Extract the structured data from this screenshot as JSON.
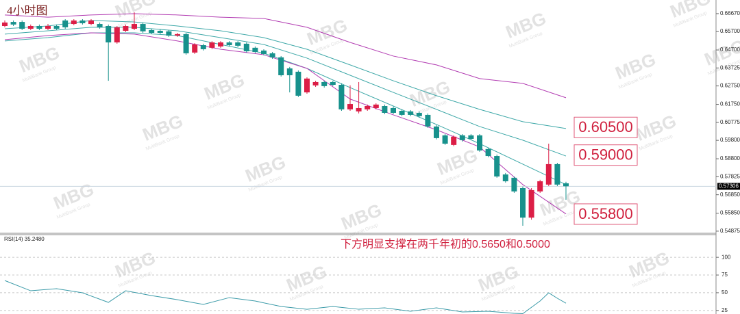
{
  "chart_data": [
    {
      "type": "candlestick",
      "title": "4小时图",
      "open": [
        0.66,
        0.6622,
        0.6622,
        0.6585,
        0.66,
        0.6585,
        0.66,
        0.663,
        0.6611,
        0.663,
        0.6611,
        0.6611,
        0.66,
        0.6511,
        0.6574,
        0.6585,
        0.6611,
        0.6578,
        0.6574,
        0.6571,
        0.6548,
        0.6556,
        0.6456,
        0.6496,
        0.6482,
        0.6489,
        0.6511,
        0.6511,
        0.6504,
        0.6482,
        0.6467,
        0.6452,
        0.643,
        0.637,
        0.6352,
        0.624,
        0.6278,
        0.6296,
        0.6296,
        0.6281,
        0.6148,
        0.6137,
        0.6148,
        0.6155,
        0.6166,
        0.6155,
        0.614,
        0.6137,
        0.6129,
        0.6118,
        0.6055,
        0.6007,
        0.5955,
        0.6007,
        0.6007,
        0.6007,
        0.5933,
        0.5895,
        0.5795,
        0.5777,
        0.5721,
        0.5561,
        0.5703,
        0.574,
        0.5851,
        0.5747
      ],
      "high": [
        0.663,
        0.663,
        0.663,
        0.6608,
        0.6608,
        0.6611,
        0.6608,
        0.6637,
        0.6637,
        0.6637,
        0.6637,
        0.6619,
        0.6608,
        0.66,
        0.6608,
        0.6674,
        0.6619,
        0.6585,
        0.6582,
        0.6578,
        0.6563,
        0.6563,
        0.6507,
        0.6504,
        0.6518,
        0.6518,
        0.6518,
        0.6518,
        0.6511,
        0.6489,
        0.6474,
        0.6459,
        0.6437,
        0.6378,
        0.6359,
        0.6322,
        0.6303,
        0.6303,
        0.6303,
        0.6289,
        0.6278,
        0.6296,
        0.6174,
        0.6181,
        0.6174,
        0.6163,
        0.6148,
        0.6144,
        0.6137,
        0.6126,
        0.6063,
        0.6014,
        0.6007,
        0.6014,
        0.6014,
        0.6014,
        0.594,
        0.5903,
        0.5803,
        0.5784,
        0.5729,
        0.5721,
        0.5766,
        0.5962,
        0.5858,
        0.5755
      ],
      "low": [
        0.6593,
        0.66,
        0.6578,
        0.6578,
        0.6578,
        0.6578,
        0.6578,
        0.6585,
        0.6604,
        0.6608,
        0.6604,
        0.6585,
        0.6303,
        0.6504,
        0.6567,
        0.6578,
        0.6563,
        0.6556,
        0.6556,
        0.6541,
        0.6541,
        0.6444,
        0.6448,
        0.6467,
        0.6474,
        0.6482,
        0.6489,
        0.6485,
        0.6456,
        0.6452,
        0.6441,
        0.6422,
        0.6326,
        0.624,
        0.6215,
        0.6233,
        0.627,
        0.6266,
        0.6274,
        0.614,
        0.614,
        0.6126,
        0.614,
        0.6148,
        0.6122,
        0.6122,
        0.6111,
        0.6111,
        0.6103,
        0.6048,
        0.5985,
        0.5955,
        0.5948,
        0.5973,
        0.5981,
        0.5918,
        0.5888,
        0.5777,
        0.5751,
        0.5695,
        0.5517,
        0.555,
        0.5695,
        0.5732,
        0.5732,
        0.5658
      ],
      "close": [
        0.6619,
        0.6608,
        0.6585,
        0.66,
        0.6585,
        0.66,
        0.6585,
        0.6593,
        0.663,
        0.6615,
        0.663,
        0.6593,
        0.6511,
        0.6593,
        0.66,
        0.6611,
        0.6571,
        0.6563,
        0.6563,
        0.6548,
        0.6556,
        0.6452,
        0.65,
        0.6474,
        0.6511,
        0.6511,
        0.6496,
        0.6493,
        0.6463,
        0.6459,
        0.6448,
        0.643,
        0.6333,
        0.6333,
        0.6222,
        0.6315,
        0.6296,
        0.6274,
        0.6281,
        0.6148,
        0.6177,
        0.6155,
        0.6166,
        0.6174,
        0.6129,
        0.6129,
        0.6118,
        0.6118,
        0.6111,
        0.6055,
        0.5992,
        0.5962,
        0.6,
        0.5981,
        0.5988,
        0.5925,
        0.5895,
        0.5784,
        0.5758,
        0.5703,
        0.5561,
        0.571,
        0.5758,
        0.5851,
        0.574,
        0.5731
      ],
      "up_color": "#dc1e46",
      "down_color": "#17918c",
      "bands": [
        {
          "color": "#b23cb2",
          "x": [
            0,
            5,
            10,
            15,
            20,
            25,
            30,
            35,
            40,
            45,
            50,
            55,
            60,
            65
          ],
          "values": [
            0.666,
            0.6648,
            0.666,
            0.6667,
            0.666,
            0.6648,
            0.6641,
            0.6593,
            0.6511,
            0.6437,
            0.6389,
            0.6315,
            0.6289,
            0.6211
          ]
        },
        {
          "color": "#3ea8a8",
          "x": [
            0,
            5,
            10,
            15,
            20,
            25,
            30,
            35,
            40,
            45,
            50,
            55,
            60,
            65
          ],
          "values": [
            0.6585,
            0.66,
            0.663,
            0.6622,
            0.66,
            0.6574,
            0.6537,
            0.6474,
            0.6389,
            0.6303,
            0.6222,
            0.6148,
            0.6081,
            0.6044
          ]
        },
        {
          "color": "#3ea8a8",
          "x": [
            0,
            5,
            10,
            15,
            20,
            25,
            30,
            35,
            40,
            45,
            50,
            55,
            60,
            65
          ],
          "values": [
            0.6556,
            0.6574,
            0.6593,
            0.6593,
            0.6574,
            0.6537,
            0.65,
            0.6426,
            0.6333,
            0.624,
            0.6148,
            0.6055,
            0.5981,
            0.5895
          ]
        },
        {
          "color": "#3ea8a8",
          "x": [
            0,
            5,
            10,
            15,
            20,
            25,
            30,
            35,
            40,
            45,
            50,
            55,
            60,
            65
          ],
          "values": [
            0.6519,
            0.6537,
            0.6563,
            0.6563,
            0.6548,
            0.65,
            0.6452,
            0.637,
            0.6266,
            0.6166,
            0.6066,
            0.5962,
            0.5851,
            0.574
          ]
        },
        {
          "color": "#b23cb2",
          "x": [
            0,
            5,
            10,
            15,
            20,
            25,
            30,
            35,
            40,
            45,
            50,
            55,
            60,
            65
          ],
          "values": [
            0.6526,
            0.6548,
            0.6563,
            0.6556,
            0.6519,
            0.6474,
            0.6444,
            0.637,
            0.6204,
            0.6118,
            0.6037,
            0.5944,
            0.574,
            0.5581
          ]
        }
      ],
      "ylim": [
        0.5476,
        0.6741
      ],
      "yticks": [
        {
          "value": 0.6667,
          "label": "0.66670"
        },
        {
          "value": 0.657,
          "label": "0.65700"
        },
        {
          "value": 0.647,
          "label": "0.64700"
        },
        {
          "value": 0.63725,
          "label": "0.63725"
        },
        {
          "value": 0.6275,
          "label": "0.62750"
        },
        {
          "value": 0.6175,
          "label": "0.61750"
        },
        {
          "value": 0.60775,
          "label": "0.60775"
        },
        {
          "value": 0.598,
          "label": "0.59800"
        },
        {
          "value": 0.588,
          "label": "0.58800"
        },
        {
          "value": 0.57825,
          "label": "0.57825"
        },
        {
          "value": 0.5685,
          "label": "0.56850"
        },
        {
          "value": 0.5585,
          "label": "0.55850"
        },
        {
          "value": 0.54875,
          "label": "0.54875"
        }
      ],
      "last_price": 0.57306,
      "levels": [
        {
          "value": 0.605,
          "label": "0.60500"
        },
        {
          "value": 0.59,
          "label": "0.59000"
        },
        {
          "value": 0.558,
          "label": "0.55800"
        }
      ],
      "note": "下方明显支撑在两千年初的0.5650和0.5000"
    },
    {
      "type": "line",
      "title": "RSI(14) 35.2480",
      "color": "#3a9aa8",
      "x": [
        0,
        3,
        6,
        9,
        12,
        14,
        17,
        20,
        23,
        26,
        29,
        32,
        35,
        38,
        41,
        44,
        47,
        50,
        53,
        56,
        59,
        60,
        62,
        63,
        64,
        65
      ],
      "values": [
        67.2,
        52.8,
        55.7,
        49.9,
        36.4,
        52.8,
        46.0,
        40.2,
        33.5,
        43.1,
        38.3,
        30.6,
        26.7,
        30.6,
        26.7,
        28.7,
        23.9,
        28.7,
        22.9,
        23.9,
        21.0,
        20.5,
        38.3,
        49.9,
        42.2,
        35.248
      ],
      "ylim": [
        20,
        132
      ],
      "yticks": [
        100,
        75,
        50,
        25
      ]
    }
  ],
  "watermark": "MBG",
  "watermark_sub": "MultiBank Group"
}
